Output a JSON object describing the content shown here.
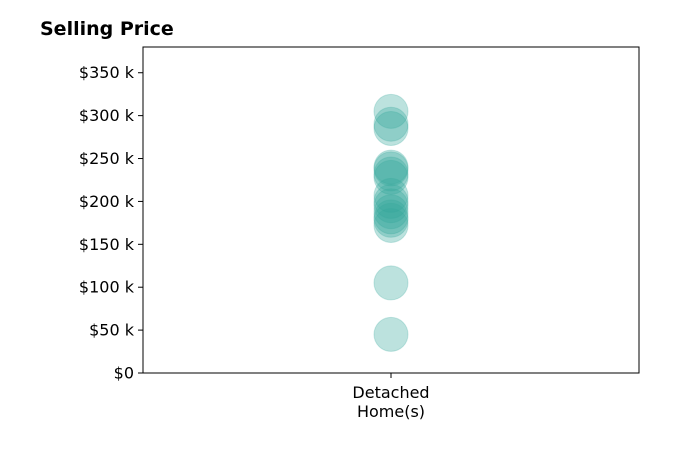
{
  "chart_data": {
    "type": "scatter",
    "title": "Selling Price",
    "xlabel": "",
    "ylabel": "",
    "categories": [
      "Detached\nHome(s)"
    ],
    "series": [
      {
        "category": "Detached\nHome(s)",
        "values": [
          45000,
          105000,
          172000,
          178000,
          182000,
          188000,
          195000,
          200000,
          207000,
          228000,
          232000,
          238000,
          240000,
          285000,
          290000,
          305000
        ]
      }
    ],
    "ylim": [
      0,
      380000
    ],
    "yticks": [
      0,
      50000,
      100000,
      150000,
      200000,
      250000,
      300000,
      350000
    ],
    "ytick_labels": [
      "$0",
      "$50 k",
      "$100 k",
      "$150 k",
      "$200 k",
      "$250 k",
      "$300 k",
      "$350 k"
    ],
    "grid": false,
    "legend": "none",
    "marker_color": "#33A69A",
    "marker_opacity": 0.33
  }
}
